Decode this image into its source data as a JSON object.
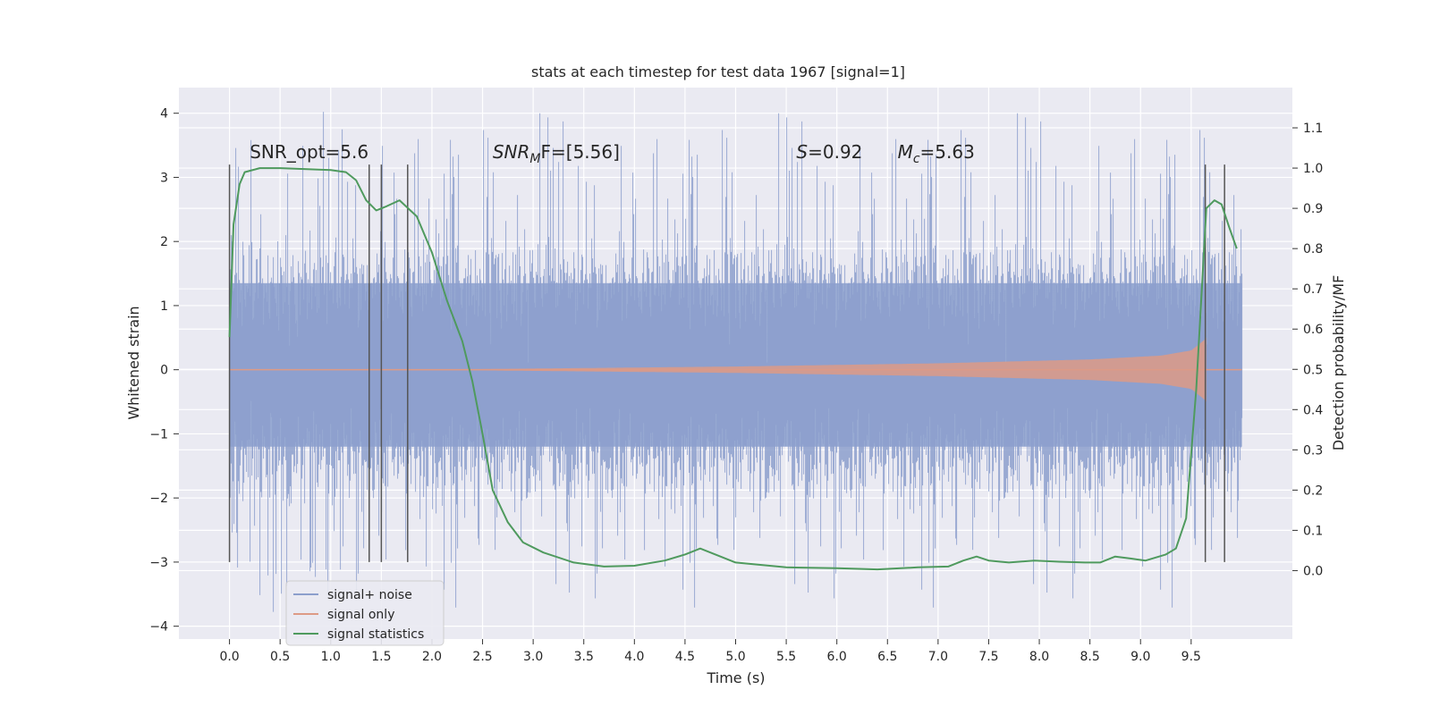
{
  "chart_data": {
    "type": "line",
    "title": "stats at each timestep for test data 1967 [signal=1]",
    "xlabel": "Time (s)",
    "ylabel": "Whitened strain",
    "y2label": "Detection probability/MF",
    "xlim": [
      -0.5,
      10.5
    ],
    "ylim": [
      -4.2,
      4.4
    ],
    "y2lim": [
      -0.17,
      1.2
    ],
    "xticks": [
      0.0,
      0.5,
      1.0,
      1.5,
      2.0,
      2.5,
      3.0,
      3.5,
      4.0,
      4.5,
      5.0,
      5.5,
      6.0,
      6.5,
      7.0,
      7.5,
      8.0,
      8.5,
      9.0,
      9.5
    ],
    "xtick_labels": [
      "0.0",
      "0.5",
      "1.0",
      "1.5",
      "2.0",
      "2.5",
      "3.0",
      "3.5",
      "4.0",
      "4.5",
      "5.0",
      "5.5",
      "6.0",
      "6.5",
      "7.0",
      "7.5",
      "8.0",
      "8.5",
      "9.0",
      "9.5"
    ],
    "yticks": [
      4,
      3,
      2,
      1,
      0,
      -1,
      -2,
      -3,
      -4
    ],
    "ytick_labels": [
      "4",
      "3",
      "2",
      "1",
      "0",
      "−1",
      "−2",
      "−3",
      "−4"
    ],
    "y2ticks": [
      1.1,
      1.0,
      0.9,
      0.8,
      0.7,
      0.6,
      0.5,
      0.4,
      0.3,
      0.2,
      0.1,
      0.0
    ],
    "y2tick_labels": [
      "1.1",
      "1.0",
      "0.9",
      "0.8",
      "0.7",
      "0.6",
      "0.5",
      "0.4",
      "0.3",
      "0.2",
      "0.1",
      "0.0"
    ],
    "grid": true,
    "legend_position": "bottom-left",
    "legend": [
      {
        "label": "signal+ noise",
        "color": "#8c9fcc"
      },
      {
        "label": "signal only",
        "color": "#dd9a86"
      },
      {
        "label": "signal statistics",
        "color": "#4f9a5e"
      }
    ],
    "annotations": [
      {
        "text": "SNR_opt=5.6",
        "x": 0.2,
        "y": 3.3
      },
      {
        "main": "SNR",
        "sub": "M",
        "tail": "F=[5.56]",
        "x": 2.6,
        "y": 3.3
      },
      {
        "main": "S",
        "sub": "",
        "tail": "=0.92",
        "x": 5.6,
        "y": 3.3
      },
      {
        "main": "M",
        "sub": "c",
        "tail": "=5.63",
        "x": 6.6,
        "y": 3.3
      }
    ],
    "vertical_markers": [
      0.0,
      1.38,
      1.5,
      1.76,
      9.64,
      9.83
    ],
    "marker_range": [
      -3.0,
      3.2
    ],
    "series": [
      {
        "name": "signal+ noise",
        "axis": "left",
        "t_range": [
          0.0,
          10.0
        ],
        "core_band": [
          -1.2,
          1.35
        ],
        "typical_band": [
          -2.2,
          2.2
        ],
        "extreme_min": -3.8,
        "extreme_max": 4.05
      },
      {
        "name": "signal only",
        "axis": "left",
        "t_range": [
          0.0,
          9.65
        ],
        "amplitude_points": [
          [
            0.0,
            0.0
          ],
          [
            2.5,
            0.01
          ],
          [
            5.0,
            0.05
          ],
          [
            7.0,
            0.1
          ],
          [
            8.5,
            0.16
          ],
          [
            9.2,
            0.22
          ],
          [
            9.5,
            0.3
          ],
          [
            9.62,
            0.45
          ],
          [
            9.65,
            0.5
          ]
        ]
      },
      {
        "name": "signal statistics",
        "axis": "right",
        "x": [
          0.0,
          0.04,
          0.1,
          0.15,
          0.3,
          0.5,
          1.0,
          1.15,
          1.25,
          1.35,
          1.45,
          1.55,
          1.68,
          1.85,
          2.0,
          2.15,
          2.3,
          2.4,
          2.5,
          2.6,
          2.75,
          2.9,
          3.1,
          3.4,
          3.7,
          4.0,
          4.3,
          4.5,
          4.65,
          4.8,
          5.0,
          5.5,
          6.0,
          6.4,
          6.8,
          7.1,
          7.25,
          7.38,
          7.5,
          7.7,
          7.95,
          8.2,
          8.45,
          8.6,
          8.75,
          8.9,
          9.05,
          9.25,
          9.35,
          9.45,
          9.55,
          9.65,
          9.73,
          9.8,
          9.88,
          9.95
        ],
        "values": [
          0.58,
          0.86,
          0.96,
          0.99,
          1.0,
          1.0,
          0.995,
          0.99,
          0.97,
          0.92,
          0.895,
          0.905,
          0.92,
          0.88,
          0.79,
          0.67,
          0.57,
          0.47,
          0.34,
          0.2,
          0.12,
          0.07,
          0.045,
          0.02,
          0.01,
          0.012,
          0.025,
          0.04,
          0.055,
          0.04,
          0.02,
          0.008,
          0.006,
          0.003,
          0.008,
          0.01,
          0.025,
          0.035,
          0.025,
          0.02,
          0.025,
          0.022,
          0.02,
          0.02,
          0.035,
          0.03,
          0.025,
          0.04,
          0.055,
          0.13,
          0.45,
          0.9,
          0.92,
          0.91,
          0.85,
          0.8
        ]
      }
    ]
  }
}
